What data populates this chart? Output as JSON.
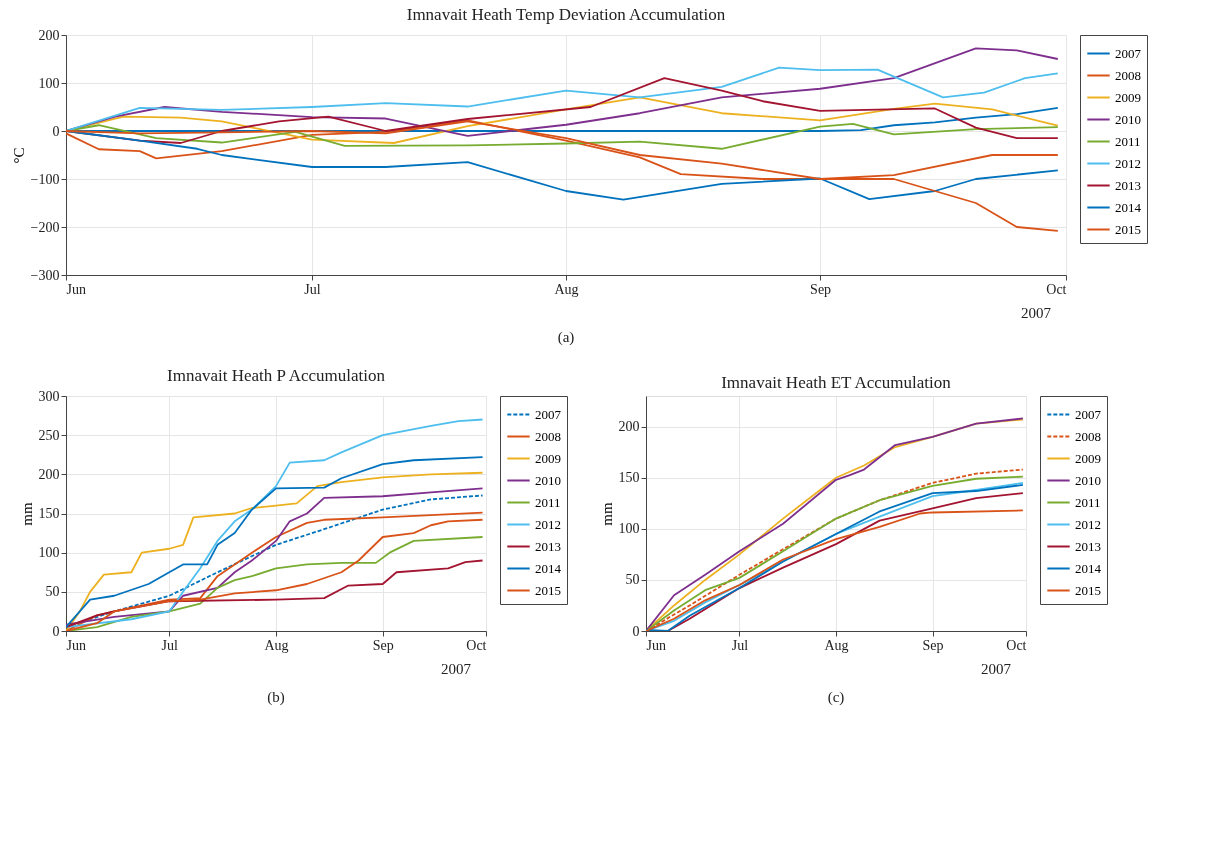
{
  "chart_data": [
    {
      "type": "line",
      "title": "Imnavait Heath Temp Deviation Accumulation",
      "ylabel": "°C",
      "legend": "right",
      "grid": true,
      "marker": "none",
      "xlim": [
        "2007-06-01",
        "2007-10-01"
      ],
      "ylim": [
        -300,
        200
      ],
      "yticks": [
        -300,
        -200,
        -100,
        0,
        100,
        200
      ],
      "xticks": [
        {
          "value": "2007-06-01",
          "label": "Jun"
        },
        {
          "value": "2007-07-01",
          "label": "Jul"
        },
        {
          "value": "2007-08-01",
          "label": "Aug"
        },
        {
          "value": "2007-09-01",
          "label": "Sep"
        },
        {
          "value": "2007-10-01",
          "label": "Oct"
        }
      ],
      "annotations": [
        "2007",
        "(a)"
      ],
      "series": [
        {
          "name": "2007",
          "color": "#0072bd",
          "line_style": "solid",
          "x": [
            "2007-06-01",
            "2007-07-01",
            "2007-08-01",
            "2007-09-01",
            "2007-09-06",
            "2007-09-10",
            "2007-09-15",
            "2007-09-20",
            "2007-09-25",
            "2007-09-30"
          ],
          "values": [
            0,
            0,
            0,
            0,
            2,
            12,
            18,
            28,
            35,
            48
          ]
        },
        {
          "name": "2008",
          "color": "#d95319",
          "line_style": "solid",
          "x": [
            "2007-06-01",
            "2007-06-05",
            "2007-06-10",
            "2007-06-12",
            "2007-06-20",
            "2007-07-01",
            "2007-07-10",
            "2007-07-20",
            "2007-08-01",
            "2007-08-10",
            "2007-08-15",
            "2007-08-25",
            "2007-09-01",
            "2007-09-10",
            "2007-09-22",
            "2007-09-30"
          ],
          "values": [
            -5,
            -38,
            -42,
            -57,
            -42,
            -8,
            -2,
            22,
            -20,
            -55,
            -90,
            -100,
            -100,
            -92,
            -50,
            -50
          ]
        },
        {
          "name": "2009",
          "color": "#edb120",
          "line_style": "solid",
          "x": [
            "2007-06-01",
            "2007-06-08",
            "2007-06-15",
            "2007-06-20",
            "2007-07-01",
            "2007-07-11",
            "2007-07-20",
            "2007-08-01",
            "2007-08-10",
            "2007-08-20",
            "2007-09-01",
            "2007-09-10",
            "2007-09-15",
            "2007-09-22",
            "2007-09-30"
          ],
          "values": [
            0,
            30,
            28,
            20,
            -18,
            -25,
            10,
            45,
            70,
            37,
            22,
            46,
            57,
            45,
            11
          ]
        },
        {
          "name": "2010",
          "color": "#7e2f8e",
          "line_style": "solid",
          "x": [
            "2007-06-01",
            "2007-06-07",
            "2007-06-13",
            "2007-06-20",
            "2007-07-01",
            "2007-07-10",
            "2007-07-20",
            "2007-08-01",
            "2007-08-10",
            "2007-08-20",
            "2007-09-01",
            "2007-09-10",
            "2007-09-20",
            "2007-09-25",
            "2007-09-30"
          ],
          "values": [
            0,
            30,
            50,
            40,
            29,
            26,
            -10,
            13,
            37,
            70,
            88,
            110,
            172,
            168,
            150
          ]
        },
        {
          "name": "2011",
          "color": "#77ac30",
          "line_style": "solid",
          "x": [
            "2007-06-01",
            "2007-06-05",
            "2007-06-12",
            "2007-06-20",
            "2007-06-29",
            "2007-07-05",
            "2007-07-20",
            "2007-08-01",
            "2007-08-10",
            "2007-08-20",
            "2007-09-01",
            "2007-09-05",
            "2007-09-10",
            "2007-09-20",
            "2007-09-30"
          ],
          "values": [
            0,
            12,
            -15,
            -24,
            -2,
            -31,
            -30,
            -26,
            -22,
            -37,
            9,
            15,
            -7,
            4,
            8
          ]
        },
        {
          "name": "2012",
          "color": "#4dbeee",
          "line_style": "solid",
          "x": [
            "2007-06-01",
            "2007-06-10",
            "2007-06-20",
            "2007-07-01",
            "2007-07-10",
            "2007-07-20",
            "2007-08-01",
            "2007-08-10",
            "2007-08-20",
            "2007-08-27",
            "2007-09-01",
            "2007-09-08",
            "2007-09-16",
            "2007-09-21",
            "2007-09-26",
            "2007-09-30"
          ],
          "values": [
            0,
            48,
            44,
            50,
            58,
            51,
            84,
            70,
            92,
            132,
            127,
            128,
            70,
            80,
            110,
            120
          ]
        },
        {
          "name": "2013",
          "color": "#a2142f",
          "line_style": "solid",
          "x": [
            "2007-06-01",
            "2007-06-10",
            "2007-06-15",
            "2007-06-20",
            "2007-06-27",
            "2007-07-03",
            "2007-07-10",
            "2007-07-20",
            "2007-08-04",
            "2007-08-13",
            "2007-08-20",
            "2007-08-25",
            "2007-09-01",
            "2007-09-15",
            "2007-09-20",
            "2007-09-25",
            "2007-09-30"
          ],
          "values": [
            0,
            -20,
            -25,
            0,
            20,
            30,
            0,
            25,
            50,
            110,
            84,
            62,
            42,
            47,
            7,
            -15,
            -15
          ]
        },
        {
          "name": "2014",
          "color": "#0072bd",
          "line_style": "solid",
          "x": [
            "2007-06-01",
            "2007-06-10",
            "2007-06-17",
            "2007-06-20",
            "2007-07-01",
            "2007-07-10",
            "2007-07-20",
            "2007-08-01",
            "2007-08-08",
            "2007-08-20",
            "2007-09-01",
            "2007-09-07",
            "2007-09-15",
            "2007-09-20",
            "2007-09-30"
          ],
          "values": [
            0,
            -20,
            -37,
            -50,
            -75,
            -75,
            -65,
            -125,
            -143,
            -110,
            -99,
            -142,
            -125,
            -100,
            -82
          ]
        },
        {
          "name": "2015",
          "color": "#d95319",
          "line_style": "solid",
          "x": [
            "2007-06-01",
            "2007-06-10",
            "2007-06-20",
            "2007-07-01",
            "2007-07-10",
            "2007-07-20",
            "2007-08-01",
            "2007-08-10",
            "2007-08-20",
            "2007-09-01",
            "2007-09-10",
            "2007-09-20",
            "2007-09-25",
            "2007-09-30"
          ],
          "values": [
            0,
            -5,
            -3,
            0,
            -5,
            20,
            -15,
            -50,
            -68,
            -100,
            -100,
            -150,
            -200,
            -208
          ]
        }
      ]
    },
    {
      "type": "line",
      "title": "Imnavait Heath P Accumulation",
      "ylabel": "mm",
      "legend": "right",
      "grid": true,
      "marker": "none",
      "xlim": [
        "2007-06-01",
        "2007-10-01"
      ],
      "ylim": [
        0,
        300
      ],
      "yticks": [
        0,
        50,
        100,
        150,
        200,
        250,
        300
      ],
      "xticks": [
        {
          "value": "2007-06-01",
          "label": "Jun"
        },
        {
          "value": "2007-07-01",
          "label": "Jul"
        },
        {
          "value": "2007-08-01",
          "label": "Aug"
        },
        {
          "value": "2007-09-01",
          "label": "Sep"
        },
        {
          "value": "2007-10-01",
          "label": "Oct"
        }
      ],
      "annotations": [
        "2007",
        "(b)"
      ],
      "series": [
        {
          "name": "2007",
          "color": "#0072bd",
          "line_style": "dashed",
          "x": [
            "2007-06-01",
            "2007-06-15",
            "2007-07-01",
            "2007-07-15",
            "2007-08-01",
            "2007-08-15",
            "2007-09-01",
            "2007-09-15",
            "2007-09-30"
          ],
          "values": [
            5,
            25,
            45,
            75,
            110,
            130,
            155,
            168,
            173
          ]
        },
        {
          "name": "2008",
          "color": "#d95319",
          "line_style": "solid",
          "x": [
            "2007-06-01",
            "2007-06-10",
            "2007-06-15",
            "2007-07-01",
            "2007-07-10",
            "2007-07-15",
            "2007-07-20",
            "2007-07-25",
            "2007-08-01",
            "2007-08-10",
            "2007-08-15",
            "2007-09-01",
            "2007-09-15",
            "2007-09-30"
          ],
          "values": [
            0,
            20,
            25,
            40,
            42,
            70,
            85,
            100,
            120,
            138,
            142,
            145,
            148,
            151
          ]
        },
        {
          "name": "2009",
          "color": "#edb120",
          "line_style": "solid",
          "x": [
            "2007-06-01",
            "2007-06-05",
            "2007-06-08",
            "2007-06-12",
            "2007-06-20",
            "2007-06-23",
            "2007-07-01",
            "2007-07-05",
            "2007-07-08",
            "2007-07-20",
            "2007-07-25",
            "2007-08-01",
            "2007-08-07",
            "2007-08-13",
            "2007-08-20",
            "2007-09-01",
            "2007-09-15",
            "2007-09-30"
          ],
          "values": [
            0,
            25,
            50,
            72,
            75,
            100,
            105,
            110,
            145,
            150,
            157,
            160,
            163,
            185,
            190,
            196,
            200,
            202
          ]
        },
        {
          "name": "2010",
          "color": "#7e2f8e",
          "line_style": "solid",
          "x": [
            "2007-06-01",
            "2007-06-15",
            "2007-07-01",
            "2007-07-05",
            "2007-07-15",
            "2007-07-20",
            "2007-07-25",
            "2007-08-01",
            "2007-08-05",
            "2007-08-10",
            "2007-08-15",
            "2007-09-01",
            "2007-09-15",
            "2007-09-30"
          ],
          "values": [
            8,
            18,
            25,
            45,
            55,
            75,
            90,
            115,
            140,
            150,
            170,
            172,
            177,
            182
          ]
        },
        {
          "name": "2011",
          "color": "#77ac30",
          "line_style": "solid",
          "x": [
            "2007-06-01",
            "2007-06-10",
            "2007-06-20",
            "2007-07-01",
            "2007-07-10",
            "2007-07-15",
            "2007-07-20",
            "2007-07-25",
            "2007-08-01",
            "2007-08-10",
            "2007-08-20",
            "2007-08-30",
            "2007-09-03",
            "2007-09-10",
            "2007-09-30"
          ],
          "values": [
            0,
            5,
            18,
            25,
            35,
            55,
            65,
            70,
            80,
            85,
            87,
            87,
            100,
            115,
            120
          ]
        },
        {
          "name": "2012",
          "color": "#4dbeee",
          "line_style": "solid",
          "x": [
            "2007-06-01",
            "2007-06-20",
            "2007-07-01",
            "2007-07-05",
            "2007-07-10",
            "2007-07-15",
            "2007-07-20",
            "2007-07-25",
            "2007-08-01",
            "2007-08-05",
            "2007-08-15",
            "2007-08-20",
            "2007-09-01",
            "2007-09-15",
            "2007-09-23",
            "2007-09-30"
          ],
          "values": [
            5,
            15,
            25,
            50,
            80,
            115,
            140,
            155,
            185,
            215,
            218,
            228,
            250,
            262,
            268,
            270
          ]
        },
        {
          "name": "2013",
          "color": "#a2142f",
          "line_style": "solid",
          "x": [
            "2007-06-01",
            "2007-06-10",
            "2007-06-15",
            "2007-07-01",
            "2007-08-01",
            "2007-08-15",
            "2007-08-22",
            "2007-09-01",
            "2007-09-05",
            "2007-09-20",
            "2007-09-25",
            "2007-09-30"
          ],
          "values": [
            5,
            20,
            25,
            38,
            40,
            42,
            58,
            60,
            75,
            80,
            88,
            90
          ]
        },
        {
          "name": "2014",
          "color": "#0072bd",
          "line_style": "solid",
          "x": [
            "2007-06-01",
            "2007-06-05",
            "2007-06-08",
            "2007-06-15",
            "2007-06-25",
            "2007-07-01",
            "2007-07-05",
            "2007-07-12",
            "2007-07-15",
            "2007-07-20",
            "2007-07-25",
            "2007-08-01",
            "2007-08-15",
            "2007-08-20",
            "2007-09-01",
            "2007-09-10",
            "2007-09-30"
          ],
          "values": [
            5,
            25,
            40,
            45,
            60,
            75,
            85,
            85,
            110,
            125,
            155,
            182,
            183,
            195,
            213,
            218,
            222
          ]
        },
        {
          "name": "2015",
          "color": "#d95319",
          "line_style": "solid",
          "x": [
            "2007-06-01",
            "2007-06-10",
            "2007-06-15",
            "2007-07-01",
            "2007-07-10",
            "2007-07-20",
            "2007-08-01",
            "2007-08-10",
            "2007-08-20",
            "2007-08-25",
            "2007-09-01",
            "2007-09-10",
            "2007-09-15",
            "2007-09-20",
            "2007-09-30"
          ],
          "values": [
            0,
            10,
            25,
            38,
            40,
            48,
            52,
            60,
            75,
            90,
            120,
            125,
            135,
            140,
            142
          ]
        }
      ]
    },
    {
      "type": "line",
      "title": "Imnavait Heath ET Accumulation",
      "ylabel": "mm",
      "legend": "right",
      "grid": true,
      "marker": "none",
      "xlim": [
        "2007-06-01",
        "2007-10-01"
      ],
      "ylim": [
        0,
        230
      ],
      "yticks": [
        0,
        50,
        100,
        150,
        200
      ],
      "xticks": [
        {
          "value": "2007-06-01",
          "label": "Jun"
        },
        {
          "value": "2007-07-01",
          "label": "Jul"
        },
        {
          "value": "2007-08-01",
          "label": "Aug"
        },
        {
          "value": "2007-09-01",
          "label": "Sep"
        },
        {
          "value": "2007-10-01",
          "label": "Oct"
        }
      ],
      "annotations": [
        "2007",
        "(c)"
      ],
      "series": [
        {
          "name": "2007",
          "color": "#0072bd",
          "line_style": "dashed"
        },
        {
          "name": "2008",
          "color": "#d95319",
          "line_style": "dashed",
          "x": [
            "2007-06-01",
            "2007-06-15",
            "2007-07-01",
            "2007-07-15",
            "2007-08-01",
            "2007-08-15",
            "2007-09-01",
            "2007-09-15",
            "2007-09-30"
          ],
          "values": [
            0,
            25,
            55,
            80,
            110,
            128,
            145,
            154,
            158
          ]
        },
        {
          "name": "2009",
          "color": "#edb120",
          "line_style": "solid",
          "x": [
            "2007-06-01",
            "2007-06-10",
            "2007-06-20",
            "2007-07-01",
            "2007-07-15",
            "2007-08-01",
            "2007-08-10",
            "2007-08-20",
            "2007-09-01",
            "2007-09-15",
            "2007-09-30"
          ],
          "values": [
            0,
            25,
            50,
            75,
            110,
            150,
            162,
            180,
            190,
            203,
            207
          ]
        },
        {
          "name": "2010",
          "color": "#7e2f8e",
          "line_style": "solid",
          "x": [
            "2007-06-01",
            "2007-06-10",
            "2007-06-20",
            "2007-07-01",
            "2007-07-15",
            "2007-08-01",
            "2007-08-05",
            "2007-08-10",
            "2007-08-20",
            "2007-09-01",
            "2007-09-15",
            "2007-09-30"
          ],
          "values": [
            0,
            35,
            55,
            78,
            105,
            148,
            152,
            158,
            182,
            190,
            203,
            208
          ]
        },
        {
          "name": "2011",
          "color": "#77ac30",
          "line_style": "solid",
          "x": [
            "2007-06-01",
            "2007-06-10",
            "2007-06-20",
            "2007-07-01",
            "2007-07-15",
            "2007-08-01",
            "2007-08-15",
            "2007-09-01",
            "2007-09-15",
            "2007-09-30"
          ],
          "values": [
            0,
            20,
            40,
            52,
            78,
            110,
            128,
            142,
            149,
            151
          ]
        },
        {
          "name": "2012",
          "color": "#4dbeee",
          "line_style": "solid",
          "x": [
            "2007-06-01",
            "2007-06-10",
            "2007-06-20",
            "2007-07-01",
            "2007-07-15",
            "2007-08-01",
            "2007-08-15",
            "2007-09-01",
            "2007-09-15",
            "2007-09-30"
          ],
          "values": [
            0,
            10,
            28,
            45,
            68,
            95,
            112,
            132,
            138,
            145
          ]
        },
        {
          "name": "2013",
          "color": "#a2142f",
          "line_style": "solid",
          "x": [
            "2007-06-01",
            "2007-06-08",
            "2007-06-15",
            "2007-07-01",
            "2007-07-15",
            "2007-08-01",
            "2007-08-15",
            "2007-09-01",
            "2007-09-15",
            "2007-09-30"
          ],
          "values": [
            0,
            0,
            12,
            42,
            62,
            85,
            108,
            120,
            130,
            135
          ]
        },
        {
          "name": "2014",
          "color": "#0072bd",
          "line_style": "solid",
          "x": [
            "2007-06-01",
            "2007-06-08",
            "2007-06-15",
            "2007-07-01",
            "2007-07-15",
            "2007-08-01",
            "2007-08-15",
            "2007-09-01",
            "2007-09-15",
            "2007-09-30"
          ],
          "values": [
            1,
            0,
            15,
            42,
            68,
            95,
            117,
            135,
            137,
            143
          ]
        },
        {
          "name": "2015",
          "color": "#d95319",
          "line_style": "solid",
          "x": [
            "2007-06-01",
            "2007-06-10",
            "2007-06-20",
            "2007-07-01",
            "2007-07-15",
            "2007-08-01",
            "2007-08-15",
            "2007-08-28",
            "2007-09-01",
            "2007-09-30"
          ],
          "values": [
            0,
            12,
            30,
            45,
            70,
            90,
            102,
            115,
            116,
            118
          ]
        }
      ]
    }
  ]
}
